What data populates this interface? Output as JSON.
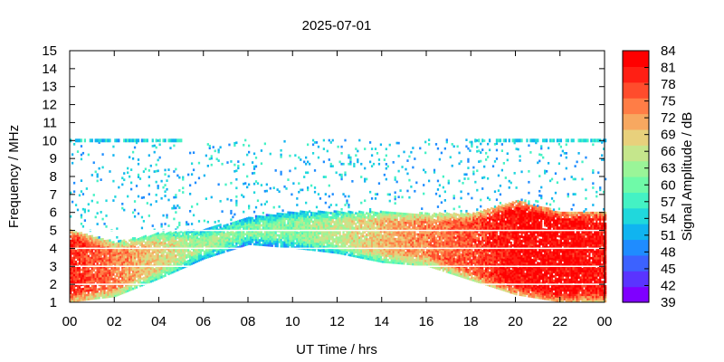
{
  "chart_data": {
    "type": "heatmap",
    "title": "2025-07-01",
    "xlabel": "UT Time / hrs",
    "ylabel": "Frequency / MHz",
    "colorbar_label": "Signal Amplitude / dB",
    "xlim": [
      0,
      24
    ],
    "ylim": [
      1,
      15
    ],
    "x_ticks": [
      "00",
      "02",
      "04",
      "06",
      "08",
      "10",
      "12",
      "14",
      "16",
      "18",
      "20",
      "22",
      "00"
    ],
    "y_ticks": [
      "1",
      "2",
      "3",
      "4",
      "5",
      "6",
      "7",
      "8",
      "9",
      "10",
      "11",
      "12",
      "13",
      "14",
      "15"
    ],
    "color_ticks": [
      "84",
      "81",
      "78",
      "75",
      "72",
      "69",
      "66",
      "63",
      "60",
      "57",
      "54",
      "51",
      "48",
      "45",
      "42",
      "39"
    ],
    "color_range": [
      39,
      84
    ],
    "colormap": [
      "#7f00ff",
      "#5a34ff",
      "#3c62ff",
      "#1f8cff",
      "#10b4f0",
      "#20d8dc",
      "#44f2c4",
      "#6ffaa8",
      "#9af598",
      "#c5e68c",
      "#e8d07c",
      "#f7a860",
      "#ff7d46",
      "#ff4c2c",
      "#ff1f14",
      "#ff0000"
    ],
    "grid": false,
    "legend": "colorbar-right",
    "description_points": [
      {
        "hour": 0,
        "fmin": 1.0,
        "fmax": 5.0,
        "level": 80
      },
      {
        "hour": 2,
        "fmin": 1.3,
        "fmax": 4.3,
        "level": 74
      },
      {
        "hour": 4,
        "fmin": 2.3,
        "fmax": 4.8,
        "level": 68
      },
      {
        "hour": 6,
        "fmin": 3.4,
        "fmax": 5.0,
        "level": 63
      },
      {
        "hour": 8,
        "fmin": 4.2,
        "fmax": 5.7,
        "level": 61
      },
      {
        "hour": 10,
        "fmin": 4.0,
        "fmax": 6.0,
        "level": 62
      },
      {
        "hour": 12,
        "fmin": 3.7,
        "fmax": 6.0,
        "level": 65
      },
      {
        "hour": 14,
        "fmin": 3.2,
        "fmax": 6.0,
        "level": 70
      },
      {
        "hour": 16,
        "fmin": 3.0,
        "fmax": 5.9,
        "level": 74
      },
      {
        "hour": 18,
        "fmin": 2.2,
        "fmax": 5.9,
        "level": 77
      },
      {
        "hour": 20,
        "fmin": 1.4,
        "fmax": 6.6,
        "level": 82
      },
      {
        "hour": 22,
        "fmin": 1.0,
        "fmax": 6.0,
        "level": 82
      },
      {
        "hour": 24,
        "fmin": 1.0,
        "fmax": 6.0,
        "level": 81
      }
    ]
  }
}
